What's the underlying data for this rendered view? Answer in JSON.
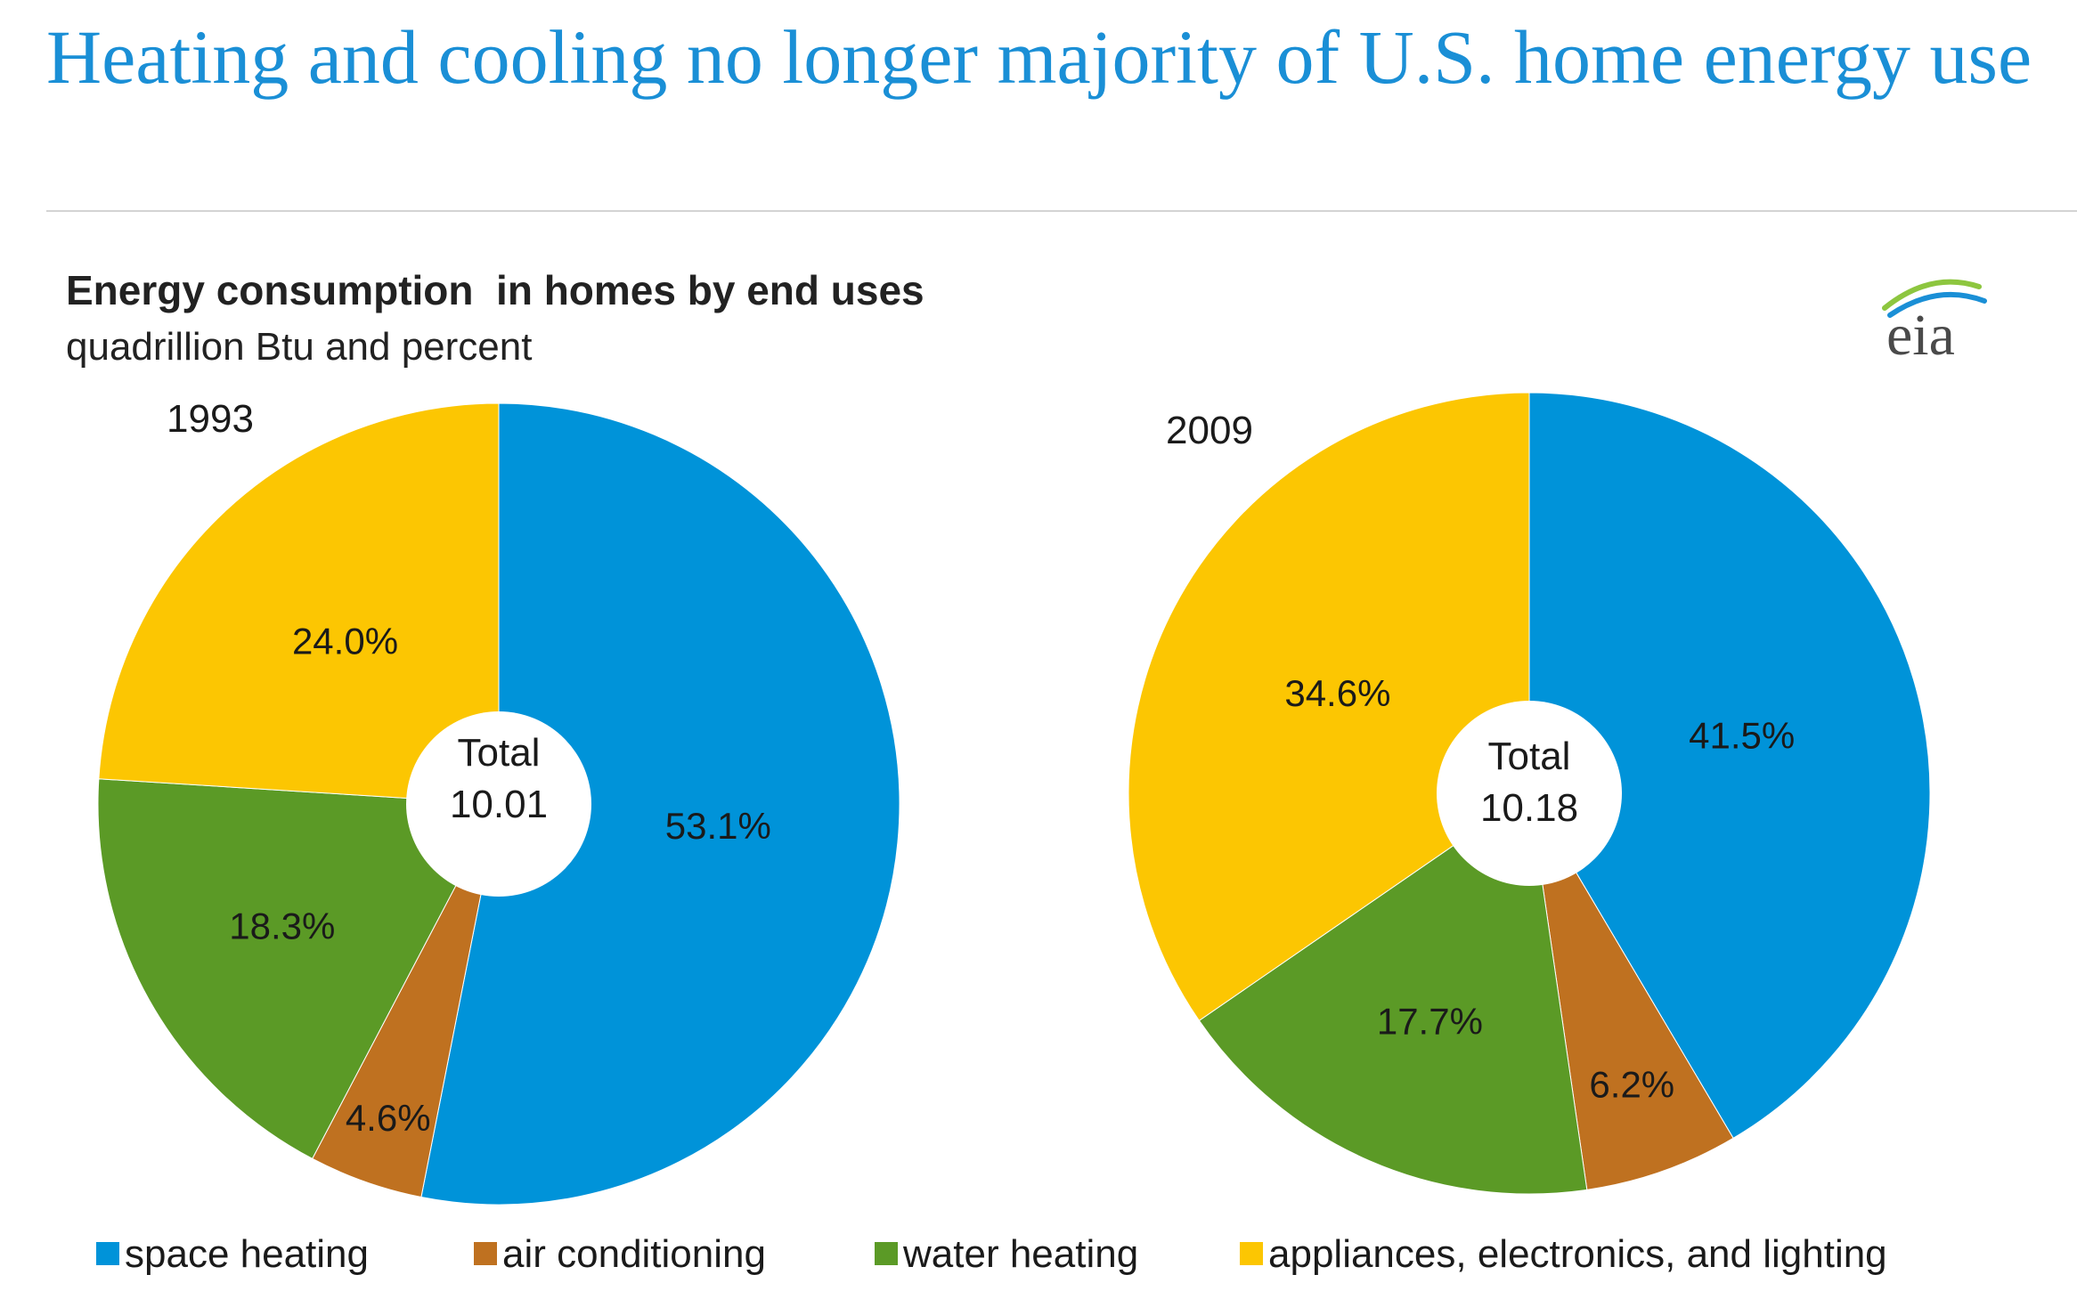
{
  "headline": "Heating and cooling no longer majority of U.S. home energy use",
  "logo": {
    "text": "eia",
    "arc_colors": [
      "#8dc63f",
      "#1a8fd6"
    ]
  },
  "chart_data": {
    "type": "pie",
    "title": "Energy consumption  in homes by end uses",
    "subtitle": "quadrillion Btu and percent",
    "center_label": "Total",
    "categories": [
      "space heating",
      "air conditioning",
      "water heating",
      "appliances, electronics, and lighting"
    ],
    "colors": [
      "#0093d9",
      "#bf7120",
      "#5b9a26",
      "#fcc602"
    ],
    "legend_position": "bottom",
    "pies": [
      {
        "year": "1993",
        "total": "10.01",
        "values": [
          53.1,
          4.6,
          18.3,
          24.0
        ],
        "labels": [
          "53.1%",
          "4.6%",
          "18.3%",
          "24.0%"
        ]
      },
      {
        "year": "2009",
        "total": "10.18",
        "values": [
          41.5,
          6.2,
          17.7,
          34.6
        ],
        "labels": [
          "41.5%",
          "6.2%",
          "17.7%",
          "34.6%"
        ]
      }
    ]
  }
}
